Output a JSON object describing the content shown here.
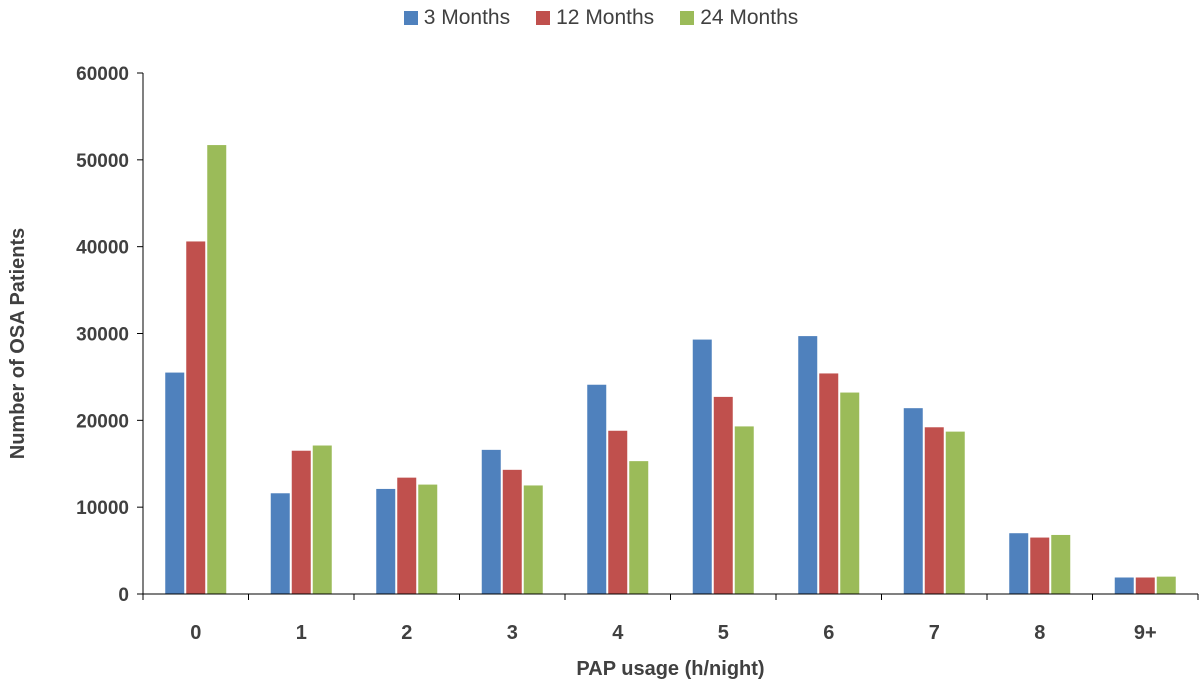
{
  "chart_data": {
    "type": "bar",
    "title": "",
    "xlabel": "PAP usage (h/night)",
    "ylabel": "Number of OSA Patients",
    "ylim": [
      0,
      60000
    ],
    "yticks": [
      0,
      10000,
      20000,
      30000,
      40000,
      50000,
      60000
    ],
    "grid": false,
    "legend_position": "top-center",
    "categories": [
      "0",
      "1",
      "2",
      "3",
      "4",
      "5",
      "6",
      "7",
      "8",
      "9+"
    ],
    "series": [
      {
        "name": "3 Months",
        "color": "#4F81BD",
        "values": [
          25500,
          11600,
          12100,
          16600,
          24100,
          29300,
          29700,
          21400,
          7000,
          1900
        ]
      },
      {
        "name": "12 Months",
        "color": "#C0504D",
        "values": [
          40600,
          16500,
          13400,
          14300,
          18800,
          22700,
          25400,
          19200,
          6500,
          1900
        ]
      },
      {
        "name": "24 Months",
        "color": "#9BBB59",
        "values": [
          51700,
          17100,
          12600,
          12500,
          15300,
          19300,
          23200,
          18700,
          6800,
          2000
        ]
      }
    ]
  }
}
